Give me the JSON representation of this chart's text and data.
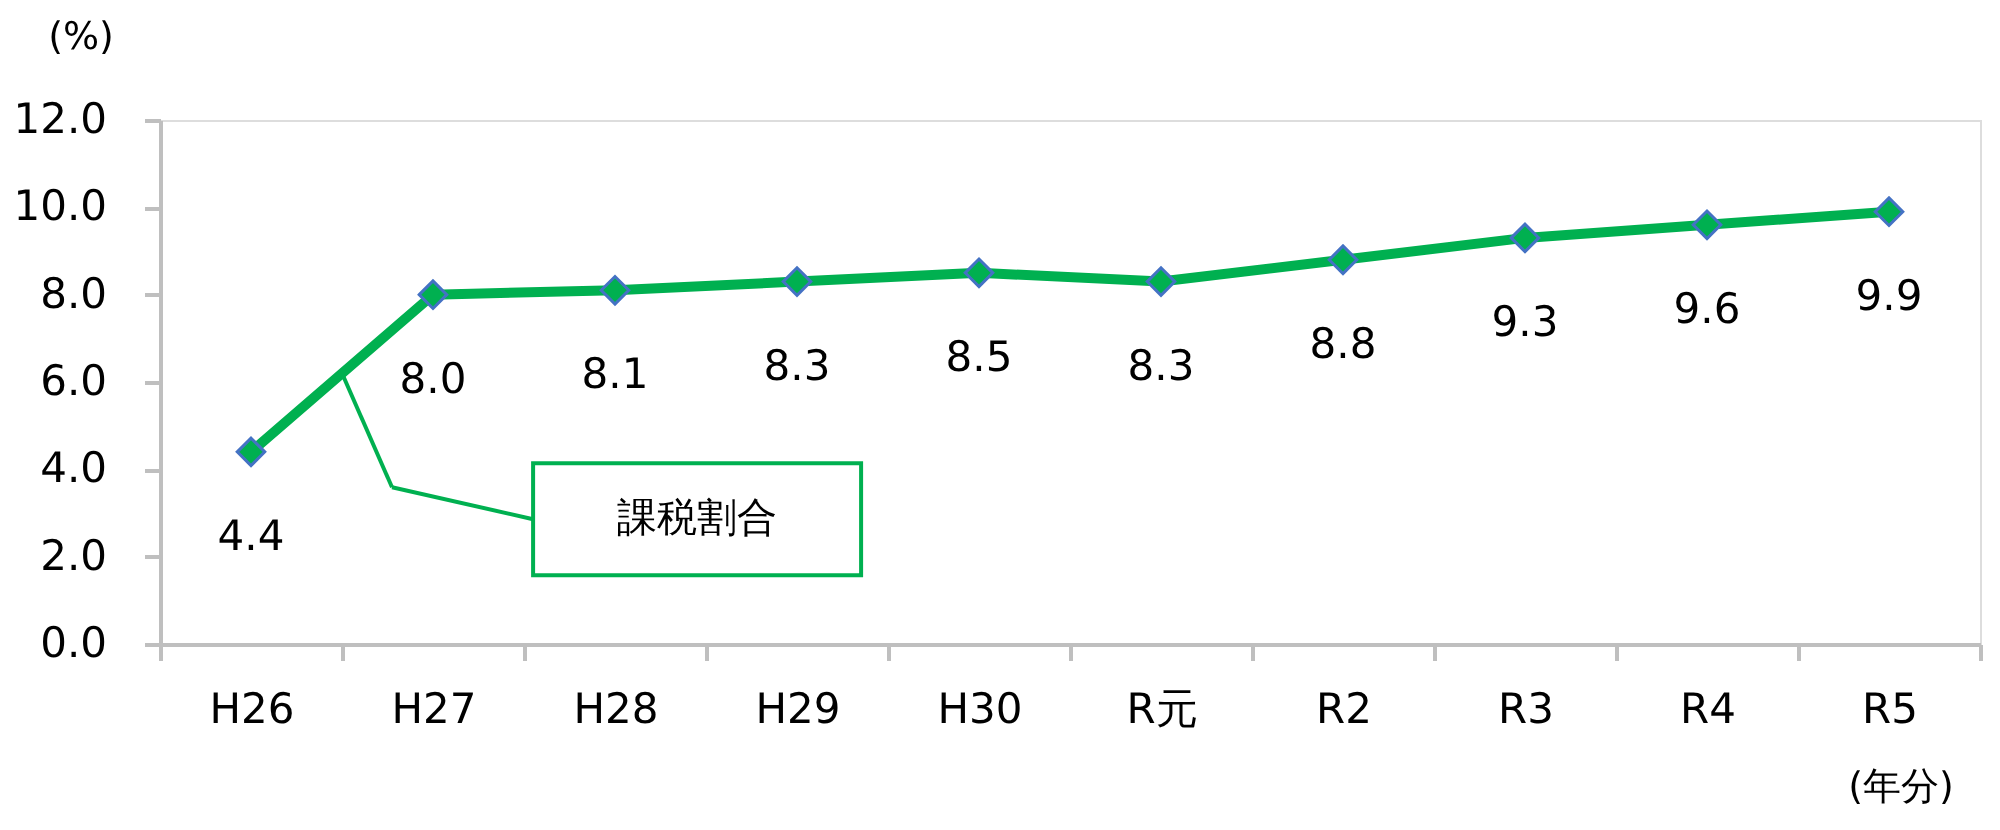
{
  "chart_data": {
    "type": "line",
    "categories": [
      "H26",
      "H27",
      "H28",
      "H29",
      "H30",
      "R元",
      "R2",
      "R3",
      "R4",
      "R5"
    ],
    "series": [
      {
        "name": "課税割合",
        "color": "#00b050",
        "values": [
          4.4,
          8.0,
          8.1,
          8.3,
          8.5,
          8.3,
          8.8,
          9.3,
          9.6,
          9.9
        ],
        "value_labels": [
          "4.4",
          "8.0",
          "8.1",
          "8.3",
          "8.5",
          "8.3",
          "8.8",
          "9.3",
          "9.6",
          "9.9"
        ]
      }
    ],
    "ylim": [
      0,
      12
    ],
    "yticks": [
      {
        "value": 0,
        "label": "0.0"
      },
      {
        "value": 2,
        "label": "2.0"
      },
      {
        "value": 4,
        "label": "4.0"
      },
      {
        "value": 6,
        "label": "6.0"
      },
      {
        "value": 8,
        "label": "8.0"
      },
      {
        "value": 10,
        "label": "10.0"
      },
      {
        "value": 12,
        "label": "12.0"
      }
    ],
    "ylabel": "(%)",
    "xlabel": "(年分)",
    "marker": "diamond",
    "line_style": "solid",
    "grid": false,
    "legend": "bottom left"
  }
}
